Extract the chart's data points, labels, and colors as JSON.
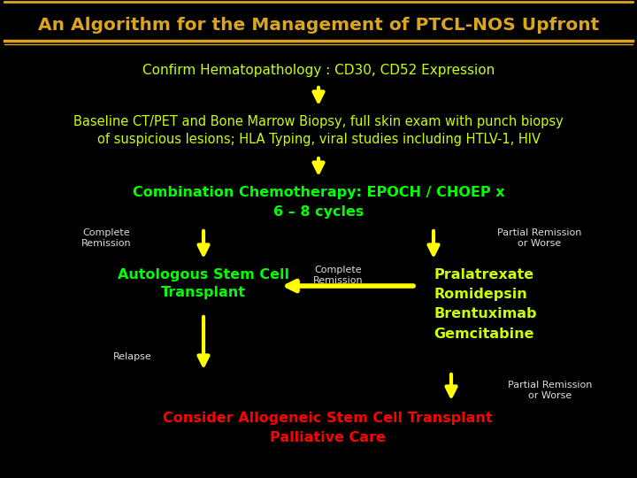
{
  "bg_color": "#000000",
  "title": "An Algorithm for the Management of PTCL-NOS Upfront",
  "title_color": "#DAA520",
  "title_fontsize": 14.5,
  "border_color": "#DAA520",
  "step1_text": "Confirm Hematopathology : CD30, CD52 Expression",
  "step1_color": "#CCFF00",
  "step2_line1": "Baseline CT/PET and Bone Marrow Biopsy, full skin exam with punch biopsy",
  "step2_line2": "of suspicious lesions; HLA Typing, viral studies including HTLV-1, HIV",
  "step2_color": "#CCFF00",
  "step3_line1": "Combination Chemotherapy: EPOCH / CHOEP x",
  "step3_line2": "6 – 8 cycles",
  "step3_color": "#00FF00",
  "left_box_line1": "Autologous Stem Cell",
  "left_box_line2": "Transplant",
  "left_box_color": "#00FF00",
  "right_box_text": "Pralatrexate\nRomidepsin\nBrentuximab\nGemcitabine",
  "right_box_color": "#CCFF00",
  "bottom_line1": "Consider Allogeneic Stem Cell Transplant",
  "bottom_line2": "Palliative Care",
  "bottom_color": "#FF0000",
  "label_cr_left": "Complete\nRemission",
  "label_pr_right": "Partial Remission\nor Worse",
  "label_cr_mid": "Complete\nRemission",
  "label_relapse": "Relapse",
  "label_pr_bot": "Partial Remission\nor Worse",
  "label_color": "#DDDDDD",
  "arrow_color": "#FFFF00",
  "figsize": [
    7.2,
    5.4
  ],
  "dpi": 100
}
